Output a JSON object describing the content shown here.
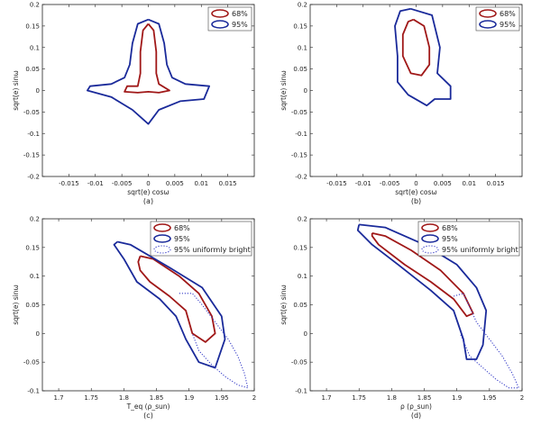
{
  "chart_data": [
    {
      "type": "line",
      "caption": "(a)",
      "xlabel": "sqrt(e) cosω",
      "ylabel": "sqrt(e) sinω",
      "xlim": [
        -0.02,
        0.02
      ],
      "ylim": [
        -0.2,
        0.2
      ],
      "xticks": [
        -0.015,
        -0.01,
        -0.005,
        0,
        0.005,
        0.01,
        0.015
      ],
      "xtick_labels": [
        "-0.015",
        "-0.01",
        "-0.005",
        "0",
        "0.005",
        "0.01",
        "0.015"
      ],
      "yticks": [
        0.2,
        0.15,
        0.1,
        0.05,
        0,
        -0.05,
        -0.1,
        -0.15,
        -0.2
      ],
      "ytick_labels": [
        "0.2",
        "0.15",
        "0.1",
        "0.05",
        "0",
        "-0.05",
        "-0.1",
        "-0.15",
        "-0.2"
      ],
      "legend": "top-right",
      "series": [
        {
          "name": "68%",
          "color": "#a01818",
          "style": "solid",
          "points": [
            [
              0,
              0.155
            ],
            [
              0.001,
              0.14
            ],
            [
              0.0015,
              0.09
            ],
            [
              0.0015,
              0.04
            ],
            [
              0.002,
              0.015
            ],
            [
              0.004,
              0.0
            ],
            [
              0.002,
              -0.005
            ],
            [
              0.0,
              -0.003
            ],
            [
              -0.002,
              -0.005
            ],
            [
              -0.0045,
              -0.003
            ],
            [
              -0.004,
              0.01
            ],
            [
              -0.002,
              0.01
            ],
            [
              -0.0015,
              0.04
            ],
            [
              -0.0015,
              0.09
            ],
            [
              -0.001,
              0.14
            ],
            [
              0,
              0.155
            ]
          ]
        },
        {
          "name": "95%",
          "color": "#1a2a9a",
          "style": "solid",
          "points": [
            [
              0,
              0.165
            ],
            [
              0.002,
              0.155
            ],
            [
              0.003,
              0.11
            ],
            [
              0.0035,
              0.06
            ],
            [
              0.0045,
              0.03
            ],
            [
              0.007,
              0.015
            ],
            [
              0.0115,
              0.01
            ],
            [
              0.0105,
              -0.02
            ],
            [
              0.006,
              -0.025
            ],
            [
              0.002,
              -0.045
            ],
            [
              0.0,
              -0.078
            ],
            [
              -0.003,
              -0.045
            ],
            [
              -0.007,
              -0.015
            ],
            [
              -0.0115,
              0.0
            ],
            [
              -0.011,
              0.01
            ],
            [
              -0.007,
              0.015
            ],
            [
              -0.0045,
              0.03
            ],
            [
              -0.0035,
              0.06
            ],
            [
              -0.003,
              0.11
            ],
            [
              -0.002,
              0.155
            ],
            [
              0,
              0.165
            ]
          ]
        }
      ]
    },
    {
      "type": "line",
      "caption": "(b)",
      "xlabel": "sqrt(e) cosω",
      "ylabel": "sqrt(e) sinω",
      "xlim": [
        -0.02,
        0.02
      ],
      "ylim": [
        -0.2,
        0.2
      ],
      "xticks": [
        -0.015,
        -0.01,
        -0.005,
        0,
        0.005,
        0.01,
        0.015
      ],
      "xtick_labels": [
        "-0.015",
        "-0.01",
        "-0.005",
        "0",
        "0.005",
        "0.01",
        "0.015"
      ],
      "yticks": [
        0.2,
        0.15,
        0.1,
        0.05,
        0,
        -0.05,
        -0.1,
        -0.15,
        -0.2
      ],
      "ytick_labels": [
        "0.2",
        "0.15",
        "0.1",
        "0.05",
        "0",
        "-0.05",
        "-0.1",
        "-0.15",
        "-0.2"
      ],
      "legend": "top-right",
      "series": [
        {
          "name": "68%",
          "color": "#a01818",
          "style": "solid",
          "points": [
            [
              -0.0005,
              0.165
            ],
            [
              0.0015,
              0.15
            ],
            [
              0.0025,
              0.1
            ],
            [
              0.0025,
              0.06
            ],
            [
              0.001,
              0.035
            ],
            [
              -0.001,
              0.04
            ],
            [
              -0.0025,
              0.08
            ],
            [
              -0.0025,
              0.13
            ],
            [
              -0.0015,
              0.16
            ],
            [
              -0.0005,
              0.165
            ]
          ]
        },
        {
          "name": "95%",
          "color": "#1a2a9a",
          "style": "solid",
          "points": [
            [
              -0.001,
              0.19
            ],
            [
              0.003,
              0.175
            ],
            [
              0.0045,
              0.1
            ],
            [
              0.004,
              0.04
            ],
            [
              0.0065,
              0.01
            ],
            [
              0.0065,
              -0.02
            ],
            [
              0.0035,
              -0.02
            ],
            [
              0.002,
              -0.035
            ],
            [
              -0.0015,
              -0.01
            ],
            [
              -0.0035,
              0.02
            ],
            [
              -0.0035,
              0.08
            ],
            [
              -0.004,
              0.15
            ],
            [
              -0.003,
              0.185
            ],
            [
              -0.001,
              0.19
            ]
          ]
        }
      ]
    },
    {
      "type": "line",
      "caption": "(c)",
      "xlabel": "T_eq (ρ_sun)",
      "ylabel": "sqrt(e) sinω",
      "xlim": [
        1.675,
        2.0
      ],
      "ylim": [
        -0.1,
        0.2
      ],
      "xticks": [
        1.7,
        1.75,
        1.8,
        1.85,
        1.9,
        1.95,
        2
      ],
      "xtick_labels": [
        "1.7",
        "1.75",
        "1.8",
        "1.85",
        "1.9",
        "1.95",
        "2"
      ],
      "yticks": [
        0.2,
        0.15,
        0.1,
        0.05,
        0,
        -0.05,
        -0.1
      ],
      "ytick_labels": [
        "0.2",
        "0.15",
        "0.1",
        "0.05",
        "0",
        "-0.05",
        "-0.1"
      ],
      "legend": "top-right",
      "series": [
        {
          "name": "68%",
          "color": "#a01818",
          "style": "solid",
          "points": [
            [
              1.825,
              0.135
            ],
            [
              1.845,
              0.13
            ],
            [
              1.885,
              0.1
            ],
            [
              1.915,
              0.07
            ],
            [
              1.935,
              0.03
            ],
            [
              1.94,
              0.0
            ],
            [
              1.925,
              -0.015
            ],
            [
              1.905,
              0.0
            ],
            [
              1.895,
              0.04
            ],
            [
              1.87,
              0.065
            ],
            [
              1.84,
              0.09
            ],
            [
              1.825,
              0.11
            ],
            [
              1.822,
              0.125
            ],
            [
              1.825,
              0.135
            ]
          ]
        },
        {
          "name": "95%",
          "color": "#1a2a9a",
          "style": "solid",
          "points": [
            [
              1.79,
              0.16
            ],
            [
              1.81,
              0.155
            ],
            [
              1.87,
              0.115
            ],
            [
              1.92,
              0.08
            ],
            [
              1.95,
              0.03
            ],
            [
              1.955,
              -0.01
            ],
            [
              1.94,
              -0.06
            ],
            [
              1.915,
              -0.05
            ],
            [
              1.895,
              -0.01
            ],
            [
              1.88,
              0.03
            ],
            [
              1.855,
              0.06
            ],
            [
              1.82,
              0.09
            ],
            [
              1.8,
              0.13
            ],
            [
              1.785,
              0.155
            ],
            [
              1.79,
              0.16
            ]
          ]
        },
        {
          "name": "95% uniformly bright",
          "color": "#3a40c8",
          "style": "dotted",
          "points": [
            [
              1.885,
              0.07
            ],
            [
              1.905,
              0.07
            ],
            [
              1.92,
              0.05
            ],
            [
              1.94,
              0.02
            ],
            [
              1.96,
              -0.01
            ],
            [
              1.975,
              -0.04
            ],
            [
              1.985,
              -0.07
            ],
            [
              1.99,
              -0.095
            ],
            [
              1.975,
              -0.09
            ],
            [
              1.955,
              -0.075
            ],
            [
              1.935,
              -0.055
            ],
            [
              1.915,
              -0.03
            ],
            [
              1.905,
              0.0
            ]
          ]
        }
      ]
    },
    {
      "type": "line",
      "caption": "(d)",
      "xlabel": "ρ (ρ_sun)",
      "ylabel": "sqrt(e) sinω",
      "xlim": [
        1.675,
        2.0
      ],
      "ylim": [
        -0.1,
        0.2
      ],
      "xticks": [
        1.7,
        1.75,
        1.8,
        1.85,
        1.9,
        1.95,
        2
      ],
      "xtick_labels": [
        "1.7",
        "1.75",
        "1.8",
        "1.85",
        "1.9",
        "1.95",
        "2"
      ],
      "yticks": [
        0.2,
        0.15,
        0.1,
        0.05,
        0,
        -0.05,
        -0.1
      ],
      "ytick_labels": [
        "0.2",
        "0.15",
        "0.1",
        "0.05",
        "0",
        "-0.05",
        "-0.1"
      ],
      "legend": "top-right",
      "series": [
        {
          "name": "68%",
          "color": "#a01818",
          "style": "solid",
          "points": [
            [
              1.77,
              0.175
            ],
            [
              1.79,
              0.17
            ],
            [
              1.83,
              0.145
            ],
            [
              1.875,
              0.11
            ],
            [
              1.91,
              0.07
            ],
            [
              1.925,
              0.035
            ],
            [
              1.915,
              0.03
            ],
            [
              1.895,
              0.06
            ],
            [
              1.86,
              0.09
            ],
            [
              1.82,
              0.12
            ],
            [
              1.78,
              0.155
            ],
            [
              1.77,
              0.17
            ],
            [
              1.77,
              0.175
            ]
          ]
        },
        {
          "name": "95%",
          "color": "#1a2a9a",
          "style": "solid",
          "points": [
            [
              1.75,
              0.19
            ],
            [
              1.79,
              0.185
            ],
            [
              1.85,
              0.155
            ],
            [
              1.9,
              0.12
            ],
            [
              1.93,
              0.08
            ],
            [
              1.945,
              0.04
            ],
            [
              1.94,
              -0.02
            ],
            [
              1.93,
              -0.045
            ],
            [
              1.915,
              -0.045
            ],
            [
              1.91,
              -0.01
            ],
            [
              1.895,
              0.04
            ],
            [
              1.86,
              0.075
            ],
            [
              1.81,
              0.12
            ],
            [
              1.77,
              0.155
            ],
            [
              1.748,
              0.18
            ],
            [
              1.75,
              0.19
            ]
          ]
        },
        {
          "name": "95% uniformly bright",
          "color": "#3a40c8",
          "style": "dotted",
          "points": [
            [
              1.895,
              0.065
            ],
            [
              1.91,
              0.07
            ],
            [
              1.92,
              0.045
            ],
            [
              1.93,
              0.02
            ],
            [
              1.95,
              -0.01
            ],
            [
              1.97,
              -0.04
            ],
            [
              1.985,
              -0.07
            ],
            [
              1.995,
              -0.095
            ],
            [
              1.98,
              -0.095
            ],
            [
              1.96,
              -0.08
            ],
            [
              1.94,
              -0.06
            ],
            [
              1.92,
              -0.04
            ],
            [
              1.905,
              0.0
            ]
          ]
        }
      ]
    }
  ]
}
